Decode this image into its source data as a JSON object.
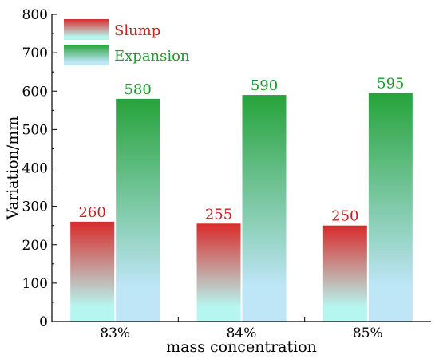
{
  "chart_data": {
    "type": "bar",
    "categories": [
      "83%",
      "84%",
      "85%"
    ],
    "series": [
      {
        "name": "Slump",
        "values": [
          260,
          255,
          250
        ],
        "color_top": "#d92b2b",
        "color_bottom": "#b6f6f0",
        "label_color": "#cc1f1f"
      },
      {
        "name": "Expansion",
        "values": [
          580,
          590,
          595
        ],
        "color_top": "#26a33a",
        "color_bottom": "#bfe6f7",
        "label_color": "#1a9c2a"
      }
    ],
    "title": "",
    "xlabel": "mass concentration",
    "ylabel": "Variation/mm",
    "ylim": [
      0,
      800
    ],
    "yticks": [
      0,
      100,
      200,
      300,
      400,
      500,
      600,
      700,
      800
    ],
    "grid": false,
    "legend_position": "top-left"
  }
}
